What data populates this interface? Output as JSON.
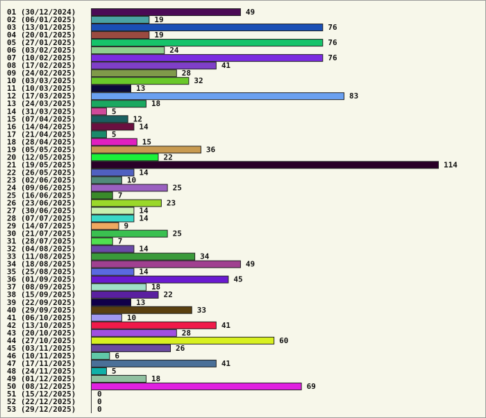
{
  "chart_data": {
    "type": "bar",
    "orientation": "horizontal",
    "categories": [
      "01 (30/12/2024)",
      "02 (06/01/2025)",
      "03 (13/01/2025)",
      "04 (20/01/2025)",
      "05 (27/01/2025)",
      "06 (03/02/2025)",
      "07 (10/02/2025)",
      "08 (17/02/2025)",
      "09 (24/02/2025)",
      "10 (03/03/2025)",
      "11 (10/03/2025)",
      "12 (17/03/2025)",
      "13 (24/03/2025)",
      "14 (31/03/2025)",
      "15 (07/04/2025)",
      "16 (14/04/2025)",
      "17 (21/04/2025)",
      "18 (28/04/2025)",
      "19 (05/05/2025)",
      "20 (12/05/2025)",
      "21 (19/05/2025)",
      "22 (26/05/2025)",
      "23 (02/06/2025)",
      "24 (09/06/2025)",
      "25 (16/06/2025)",
      "26 (23/06/2025)",
      "27 (30/06/2025)",
      "28 (07/07/2025)",
      "29 (14/07/2025)",
      "30 (21/07/2025)",
      "31 (28/07/2025)",
      "32 (04/08/2025)",
      "33 (11/08/2025)",
      "34 (18/08/2025)",
      "35 (25/08/2025)",
      "36 (01/09/2025)",
      "37 (08/09/2025)",
      "38 (15/09/2025)",
      "39 (22/09/2025)",
      "40 (29/09/2025)",
      "41 (06/10/2025)",
      "42 (13/10/2025)",
      "43 (20/10/2025)",
      "44 (27/10/2025)",
      "45 (03/11/2025)",
      "46 (10/11/2025)",
      "47 (17/11/2025)",
      "48 (24/11/2025)",
      "49 (01/12/2025)",
      "50 (08/12/2025)",
      "51 (15/12/2025)",
      "52 (22/12/2025)",
      "53 (29/12/2025)"
    ],
    "values": [
      49,
      19,
      76,
      19,
      76,
      24,
      76,
      41,
      28,
      32,
      13,
      83,
      18,
      5,
      12,
      14,
      5,
      15,
      36,
      22,
      114,
      14,
      10,
      25,
      7,
      23,
      14,
      14,
      9,
      25,
      7,
      14,
      34,
      49,
      14,
      45,
      18,
      22,
      13,
      33,
      10,
      41,
      28,
      60,
      26,
      6,
      41,
      5,
      18,
      69,
      0,
      0,
      0
    ],
    "colors": [
      "#4b0a55",
      "#4aa3a3",
      "#1a4fb5",
      "#9a4a40",
      "#16c36a",
      "#8fcf8f",
      "#7b2ce0",
      "#7f3fc8",
      "#7f9a4a",
      "#6ac82a",
      "#0a0a3a",
      "#6aa0f0",
      "#1aa860",
      "#d04a9a",
      "#1a6060",
      "#6a1040",
      "#1a8a6a",
      "#e020c0",
      "#c89a50",
      "#1af03a",
      "#2a0028",
      "#5060c0",
      "#508a7a",
      "#9a60c0",
      "#3a8a2a",
      "#9ad82a",
      "#c8f0b0",
      "#3ad8c8",
      "#f0a860",
      "#3ac050",
      "#50e050",
      "#6a4aa8",
      "#3a9a3a",
      "#a04090",
      "#5a6ae0",
      "#6a1ad0",
      "#a0e0c8",
      "#5a20a0",
      "#10004a",
      "#5a4010",
      "#a098f0",
      "#f01a4a",
      "#a050e0",
      "#d8f020",
      "#6a4aa0",
      "#60c8a8",
      "#4a7098",
      "#10b0a8",
      "#90c0a0",
      "#e020e0",
      "#ffffff",
      "#ffffff",
      "#ffffff"
    ],
    "xlim": [
      0,
      114
    ],
    "grid": false,
    "legend": "none",
    "title": "",
    "xlabel": "",
    "ylabel": ""
  }
}
